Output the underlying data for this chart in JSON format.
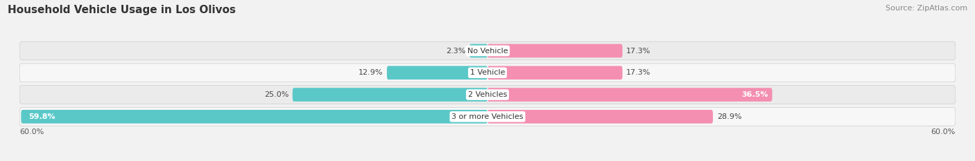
{
  "title": "Household Vehicle Usage in Los Olivos",
  "source": "Source: ZipAtlas.com",
  "categories": [
    "No Vehicle",
    "1 Vehicle",
    "2 Vehicles",
    "3 or more Vehicles"
  ],
  "owner_values": [
    2.3,
    12.9,
    25.0,
    59.8
  ],
  "renter_values": [
    17.3,
    17.3,
    36.5,
    28.9
  ],
  "owner_color": "#5bc8c8",
  "renter_color": "#f48fb1",
  "label_color": "#555555",
  "bg_color": "#f2f2f2",
  "row_colors": [
    "#ebebeb",
    "#f7f7f7",
    "#ebebeb",
    "#f7f7f7"
  ],
  "axis_limit": 60.0,
  "axis_label_left": "60.0%",
  "axis_label_right": "60.0%",
  "title_fontsize": 11,
  "source_fontsize": 8,
  "label_fontsize": 8,
  "value_fontsize": 8
}
